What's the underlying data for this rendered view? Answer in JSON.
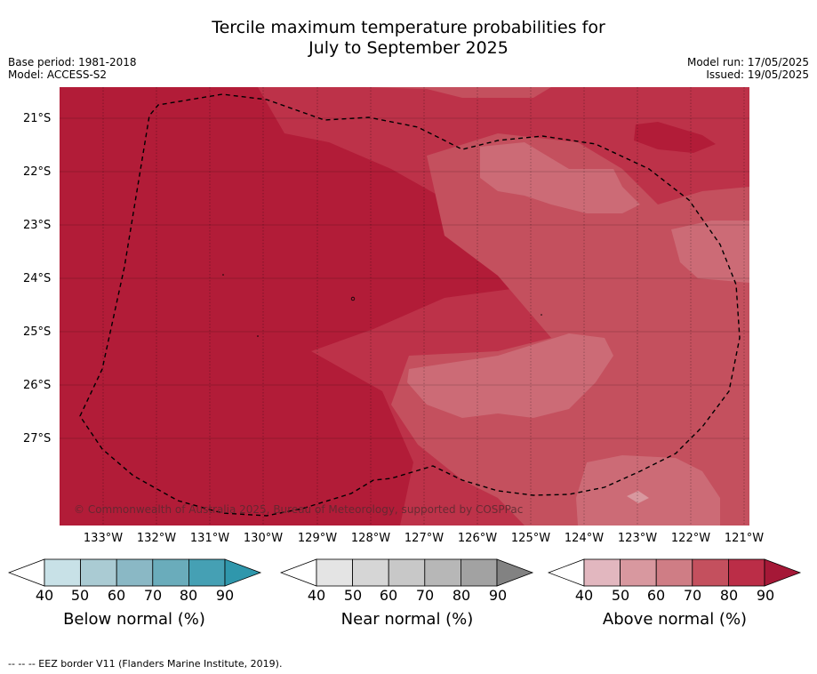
{
  "title_line1": "Tercile maximum temperature probabilities for",
  "title_line2": "July to September 2025",
  "base_period": "Base period: 1981-2018",
  "model": "Model: ACCESS-S2",
  "model_run": "Model run: 17/05/2025",
  "issued": "Issued: 19/05/2025",
  "map": {
    "lat_labels": [
      "21°S",
      "22°S",
      "23°S",
      "24°S",
      "25°S",
      "26°S",
      "27°S"
    ],
    "lon_labels": [
      "133°W",
      "132°W",
      "131°W",
      "130°W",
      "129°W",
      "128°W",
      "127°W",
      "126°W",
      "125°W",
      "124°W",
      "123°W",
      "122°W",
      "121°W"
    ],
    "credit": "© Commonwealth of Australia 2025, Bureau of Meteorology, supported by COSPPac",
    "shade_colors": {
      "p90": "#b21c38",
      "p80": "#bd3249",
      "p70": "#c4505e",
      "p60": "#cc6b76"
    }
  },
  "colorbars": [
    {
      "label": "Below normal (%)",
      "ticks": [
        "40",
        "50",
        "60",
        "70",
        "80",
        "90"
      ],
      "colors": [
        "#ffffff",
        "#c8e1e7",
        "#aacbd3",
        "#8ab8c5",
        "#6aacbb",
        "#45a0b4",
        "#2f97ac"
      ]
    },
    {
      "label": "Near normal (%)",
      "ticks": [
        "40",
        "50",
        "60",
        "70",
        "80",
        "90"
      ],
      "colors": [
        "#ffffff",
        "#e4e4e4",
        "#d6d6d6",
        "#c8c8c8",
        "#b7b7b7",
        "#a2a2a2",
        "#828282"
      ]
    },
    {
      "label": "Above normal (%)",
      "ticks": [
        "40",
        "50",
        "60",
        "70",
        "80",
        "90"
      ],
      "colors": [
        "#ffffff",
        "#e2b7bf",
        "#d8989f",
        "#cf7d85",
        "#c4505e",
        "#bb2d47",
        "#a51837"
      ]
    }
  ],
  "footer": "-- -- -- EEZ border V11 (Flanders Marine Institute, 2019)."
}
